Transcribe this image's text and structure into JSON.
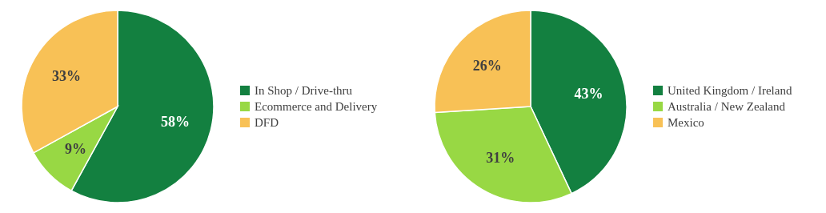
{
  "chart_data": [
    {
      "type": "pie",
      "categories": [
        "In Shop / Drive-thru",
        "Ecommerce and Delivery",
        "DFD"
      ],
      "values": [
        58,
        9,
        33
      ],
      "value_labels": [
        "58%",
        "9%",
        "33%"
      ],
      "colors": [
        "#138040",
        "#98d844",
        "#f8c156"
      ],
      "legend": "right"
    },
    {
      "type": "pie",
      "categories": [
        "United Kingdom / Ireland",
        "Australia / New Zealand",
        "Mexico"
      ],
      "values": [
        43,
        31,
        26
      ],
      "value_labels": [
        "43%",
        "31%",
        "26%"
      ],
      "colors": [
        "#138040",
        "#98d844",
        "#f8c156"
      ],
      "legend": "right"
    }
  ]
}
